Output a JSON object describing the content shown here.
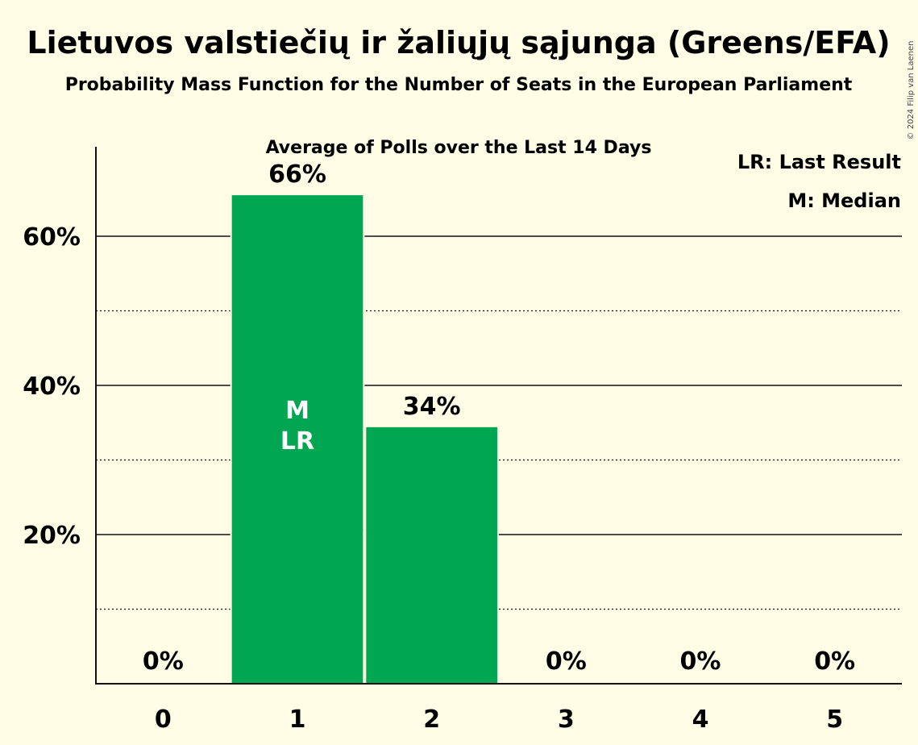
{
  "header": {
    "title": "Lietuvos valstiečių ir žaliųjų sąjunga (Greens/EFA)",
    "subtitle": "Probability Mass Function for the Number of Seats in the European Parliament",
    "subtitle2": "Average of Polls over the Last 14 Days"
  },
  "legend": {
    "last_result": "LR: Last Result",
    "median": "M: Median"
  },
  "copyright": "© 2024 Filip van Laenen",
  "colors": {
    "bar": "#00A651",
    "background": "#FFFDE6",
    "text": "#111111"
  },
  "chart_data": {
    "type": "bar",
    "categories": [
      "0",
      "1",
      "2",
      "3",
      "4",
      "5"
    ],
    "values": [
      0,
      65.5,
      34.4,
      0,
      0,
      0
    ],
    "value_labels": [
      "0%",
      "66%",
      "34%",
      "0%",
      "0%",
      "0%"
    ],
    "ylim": [
      0,
      72
    ],
    "yticks": [
      {
        "value": 20,
        "label": "20%"
      },
      {
        "value": 40,
        "label": "40%"
      },
      {
        "value": 60,
        "label": "60%"
      }
    ],
    "minor_gridlines": [
      10,
      30,
      50
    ],
    "annotations": [
      {
        "category": "1",
        "lines": [
          "M",
          "LR"
        ]
      }
    ],
    "legend_position": "top-right",
    "grid": true
  }
}
